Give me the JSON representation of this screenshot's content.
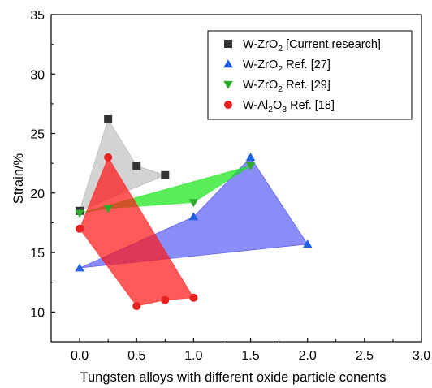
{
  "chart_data": {
    "type": "scatter",
    "title": "",
    "xlabel": "Tungsten alloys with different  oxide particle conents",
    "ylabel": "Strain/%",
    "xlim": [
      -0.25,
      3.0
    ],
    "ylim": [
      7.5,
      35
    ],
    "x_ticks": [
      0.0,
      0.5,
      1.0,
      1.5,
      2.0,
      2.5,
      3.0
    ],
    "x_tick_labels": [
      "0.0",
      "0.5",
      "1.0",
      "1.5",
      "2.0",
      "2.5",
      "3.0"
    ],
    "y_ticks": [
      10,
      15,
      20,
      25,
      30,
      35
    ],
    "y_tick_labels": [
      "10",
      "15",
      "20",
      "25",
      "30",
      "35"
    ],
    "grid": false,
    "legend_position": "top-right",
    "series": [
      {
        "name": "W-ZrO2 [Current research]",
        "legend": {
          "pre": "W-ZrO",
          "sub": "2",
          "mid": "",
          "sub2": "",
          "post": " [Current research]"
        },
        "marker": "square",
        "color": "#333333",
        "fill": "#9e9e9e",
        "fill_opacity": 0.45,
        "x": [
          0.0,
          0.25,
          0.5,
          0.75
        ],
        "y": [
          18.5,
          26.2,
          22.3,
          21.5
        ],
        "polygon": [
          [
            0.0,
            18.5
          ],
          [
            0.25,
            26.2
          ],
          [
            0.5,
            22.3
          ],
          [
            0.75,
            21.5
          ]
        ]
      },
      {
        "name": "W-ZrO2 Ref. [27]",
        "legend": {
          "pre": "W-ZrO",
          "sub": "2",
          "mid": "",
          "sub2": "",
          "post": " Ref. [27]"
        },
        "marker": "triangle-up",
        "color": "#1f5fe0",
        "fill": "#2a2ef0",
        "fill_opacity": 0.55,
        "x": [
          0.0,
          1.0,
          1.5,
          2.0
        ],
        "y": [
          13.7,
          18.0,
          23.0,
          15.7
        ],
        "polygon": [
          [
            0.0,
            13.7
          ],
          [
            1.0,
            18.0
          ],
          [
            1.5,
            23.0
          ],
          [
            2.0,
            15.7
          ]
        ]
      },
      {
        "name": "W-ZrO2 Ref. [29]",
        "legend": {
          "pre": "W-ZrO",
          "sub": "2",
          "mid": "",
          "sub2": "",
          "post": " Ref. [29]"
        },
        "marker": "triangle-down",
        "color": "#2eaa2e",
        "fill": "#14e614",
        "fill_opacity": 0.7,
        "x": [
          0.0,
          0.25,
          1.0,
          1.5
        ],
        "y": [
          18.3,
          18.7,
          19.2,
          22.3
        ],
        "polygon": [
          [
            0.0,
            18.3
          ],
          [
            1.5,
            22.3
          ],
          [
            1.0,
            19.2
          ],
          [
            0.25,
            18.7
          ]
        ]
      },
      {
        "name": "W-Al2O3 Ref. [18]",
        "legend": {
          "pre": "W-Al",
          "sub": "2",
          "mid": "O",
          "sub2": "3",
          "post": " Ref. [18]"
        },
        "marker": "circle",
        "color": "#e82020",
        "fill": "#ff1414",
        "fill_opacity": 0.7,
        "x": [
          0.0,
          0.25,
          0.5,
          0.75,
          1.0
        ],
        "y": [
          17.0,
          23.0,
          10.5,
          11.0,
          11.2
        ],
        "polygon": [
          [
            0.0,
            17.0
          ],
          [
            0.25,
            23.0
          ],
          [
            1.0,
            11.2
          ],
          [
            0.75,
            11.0
          ],
          [
            0.5,
            10.5
          ]
        ]
      }
    ]
  }
}
